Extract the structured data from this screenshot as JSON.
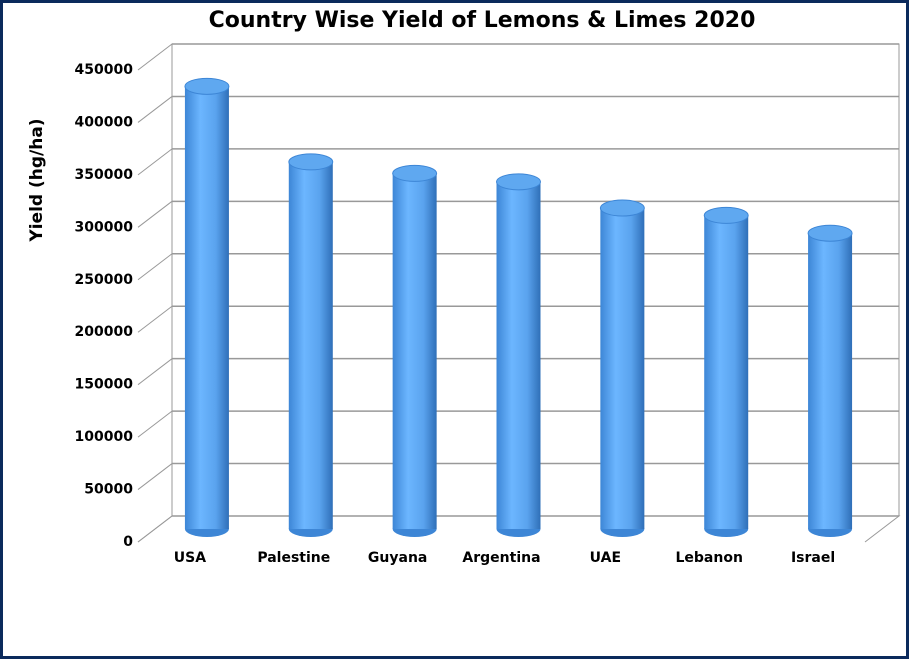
{
  "chart_data": {
    "type": "bar",
    "title": "Country Wise Yield of Lemons & Limes 2020",
    "y_label": "Yield (hg/ha)",
    "categories": [
      "USA",
      "Palestine",
      "Guyana",
      "Argentina",
      "UAE",
      "Lebanon",
      "Israel"
    ],
    "values": [
      422000,
      350000,
      339000,
      331000,
      306000,
      299000,
      282000
    ],
    "color": "#5fa8f0",
    "ylim": [
      0,
      450000
    ],
    "yticks": [
      0,
      50000,
      100000,
      150000,
      200000,
      250000,
      300000,
      350000,
      400000,
      450000
    ],
    "grid": true
  }
}
